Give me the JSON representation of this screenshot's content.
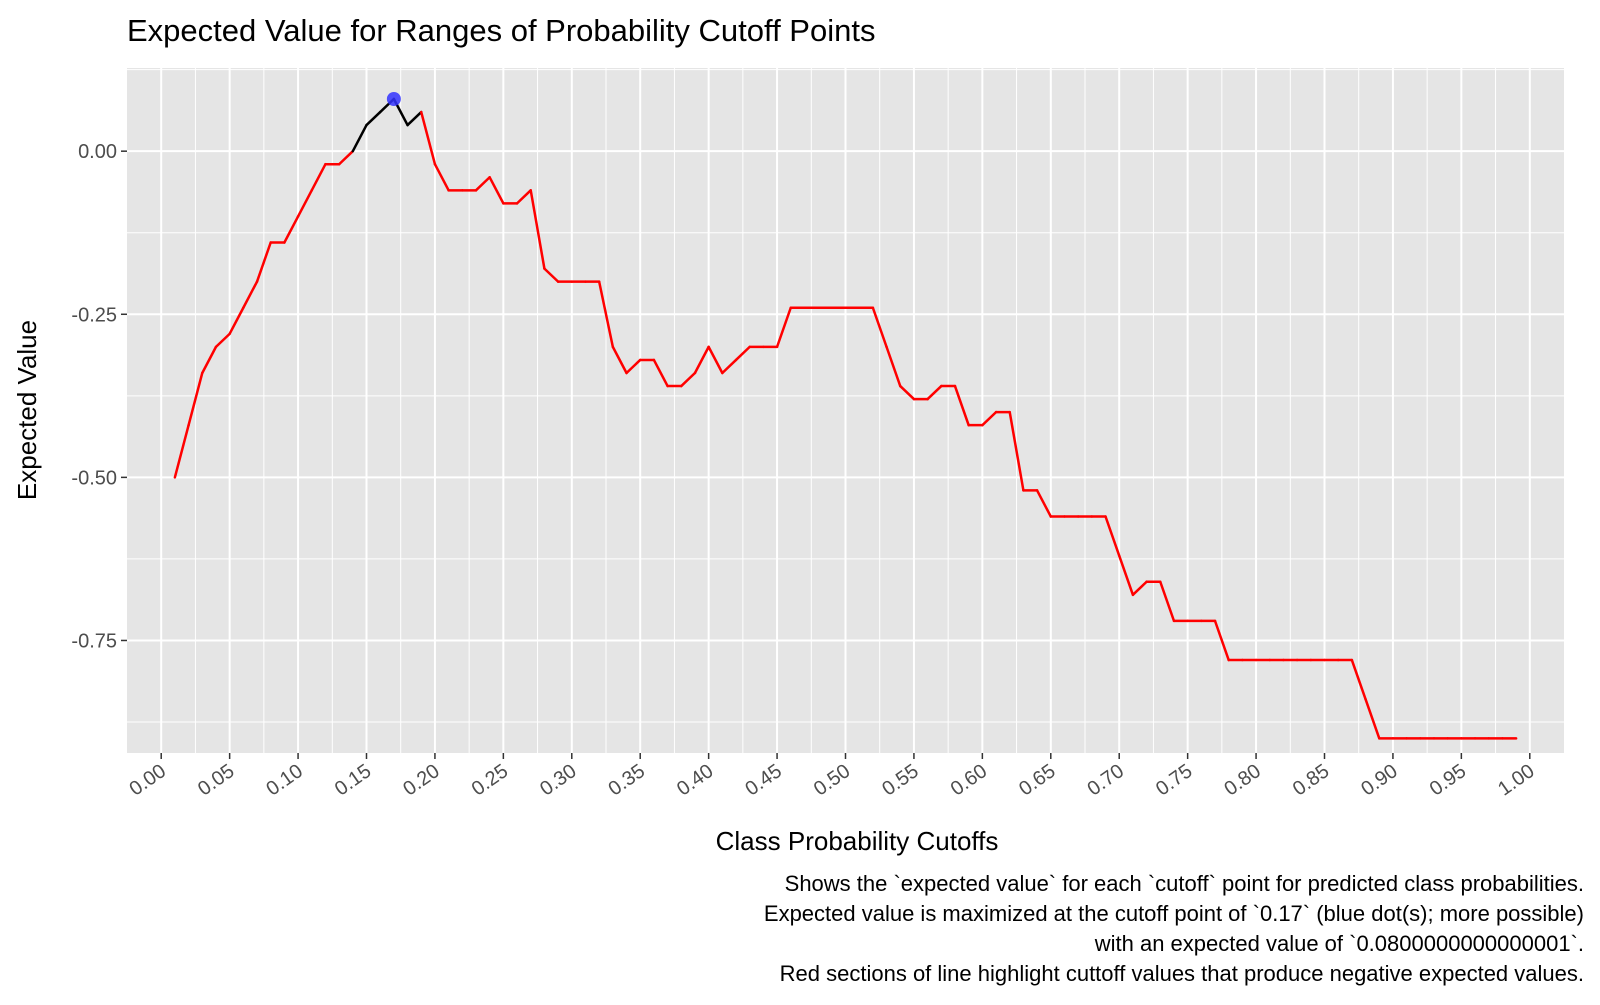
{
  "chart_data": {
    "type": "line",
    "title": "Expected Value for Ranges of Probability Cutoff Points",
    "xlabel": "Class Probability Cutoffs",
    "ylabel": "Expected Value",
    "xlim": [
      -0.025,
      1.025
    ],
    "ylim": [
      -0.9225,
      0.1275
    ],
    "x_ticks": [
      "0.00",
      "0.05",
      "0.10",
      "0.15",
      "0.20",
      "0.25",
      "0.30",
      "0.35",
      "0.40",
      "0.45",
      "0.50",
      "0.55",
      "0.60",
      "0.65",
      "0.70",
      "0.75",
      "0.80",
      "0.85",
      "0.90",
      "0.95",
      "1.00"
    ],
    "y_ticks": [
      "0.00",
      "-0.25",
      "-0.50",
      "-0.75"
    ],
    "grid": true,
    "legend": "none",
    "colors": {
      "panel_background": "#e5e5e5",
      "grid": "#ffffff",
      "negative_line": "#ff0000",
      "non_negative_line": "#000000",
      "max_point": "#3333ff"
    },
    "series": [
      {
        "x": [
          0.01,
          0.02,
          0.03,
          0.04,
          0.05,
          0.06,
          0.07,
          0.08,
          0.09,
          0.1,
          0.11,
          0.12,
          0.13,
          0.14,
          0.15,
          0.16,
          0.17,
          0.18,
          0.19,
          0.2,
          0.21,
          0.22,
          0.23,
          0.24,
          0.25,
          0.26,
          0.27,
          0.28,
          0.29,
          0.3,
          0.31,
          0.32,
          0.33,
          0.34,
          0.35,
          0.36,
          0.37,
          0.38,
          0.39,
          0.4,
          0.41,
          0.42,
          0.43,
          0.44,
          0.45,
          0.46,
          0.47,
          0.48,
          0.49,
          0.5,
          0.51,
          0.52,
          0.53,
          0.54,
          0.55,
          0.56,
          0.57,
          0.58,
          0.59,
          0.6,
          0.61,
          0.62,
          0.63,
          0.64,
          0.65,
          0.66,
          0.67,
          0.68,
          0.69,
          0.7,
          0.71,
          0.72,
          0.73,
          0.74,
          0.75,
          0.76,
          0.77,
          0.78,
          0.79,
          0.8,
          0.81,
          0.82,
          0.83,
          0.84,
          0.85,
          0.86,
          0.87,
          0.88,
          0.89,
          0.9,
          0.91,
          0.92,
          0.93,
          0.94,
          0.95,
          0.96,
          0.97,
          0.98,
          0.99
        ],
        "y": [
          -0.5,
          -0.42,
          -0.34,
          -0.3,
          -0.28,
          -0.24,
          -0.2,
          -0.14,
          -0.14,
          -0.1,
          -0.06,
          -0.02,
          -0.02,
          0.0,
          0.04,
          0.06,
          0.08,
          0.04,
          0.06,
          -0.02,
          -0.06,
          -0.06,
          -0.06,
          -0.04,
          -0.08,
          -0.08,
          -0.06,
          -0.18,
          -0.2,
          -0.2,
          -0.2,
          -0.2,
          -0.3,
          -0.34,
          -0.32,
          -0.32,
          -0.36,
          -0.36,
          -0.34,
          -0.3,
          -0.34,
          -0.32,
          -0.3,
          -0.3,
          -0.3,
          -0.24,
          -0.24,
          -0.24,
          -0.24,
          -0.24,
          -0.24,
          -0.24,
          -0.3,
          -0.36,
          -0.38,
          -0.38,
          -0.36,
          -0.36,
          -0.42,
          -0.42,
          -0.4,
          -0.4,
          -0.52,
          -0.52,
          -0.56,
          -0.56,
          -0.56,
          -0.56,
          -0.56,
          -0.62,
          -0.68,
          -0.66,
          -0.66,
          -0.72,
          -0.72,
          -0.72,
          -0.72,
          -0.78,
          -0.78,
          -0.78,
          -0.78,
          -0.78,
          -0.78,
          -0.78,
          -0.78,
          -0.78,
          -0.78,
          -0.84,
          -0.9,
          -0.9,
          -0.9,
          -0.9,
          -0.9,
          -0.9,
          -0.9,
          -0.9,
          -0.9,
          -0.9,
          -0.9
        ]
      }
    ],
    "max_point": {
      "x": 0.17,
      "y": 0.08
    },
    "caption": [
      "Shows the `expected value` for each `cutoff` point for predicted class probabilities.",
      "Expected value is maximized at the cutoff point of `0.17` (blue dot(s); more possible)",
      "with an expected value of `0.0800000000000001`.",
      "Red sections of line highlight cuttoff values that produce negative expected values."
    ]
  }
}
